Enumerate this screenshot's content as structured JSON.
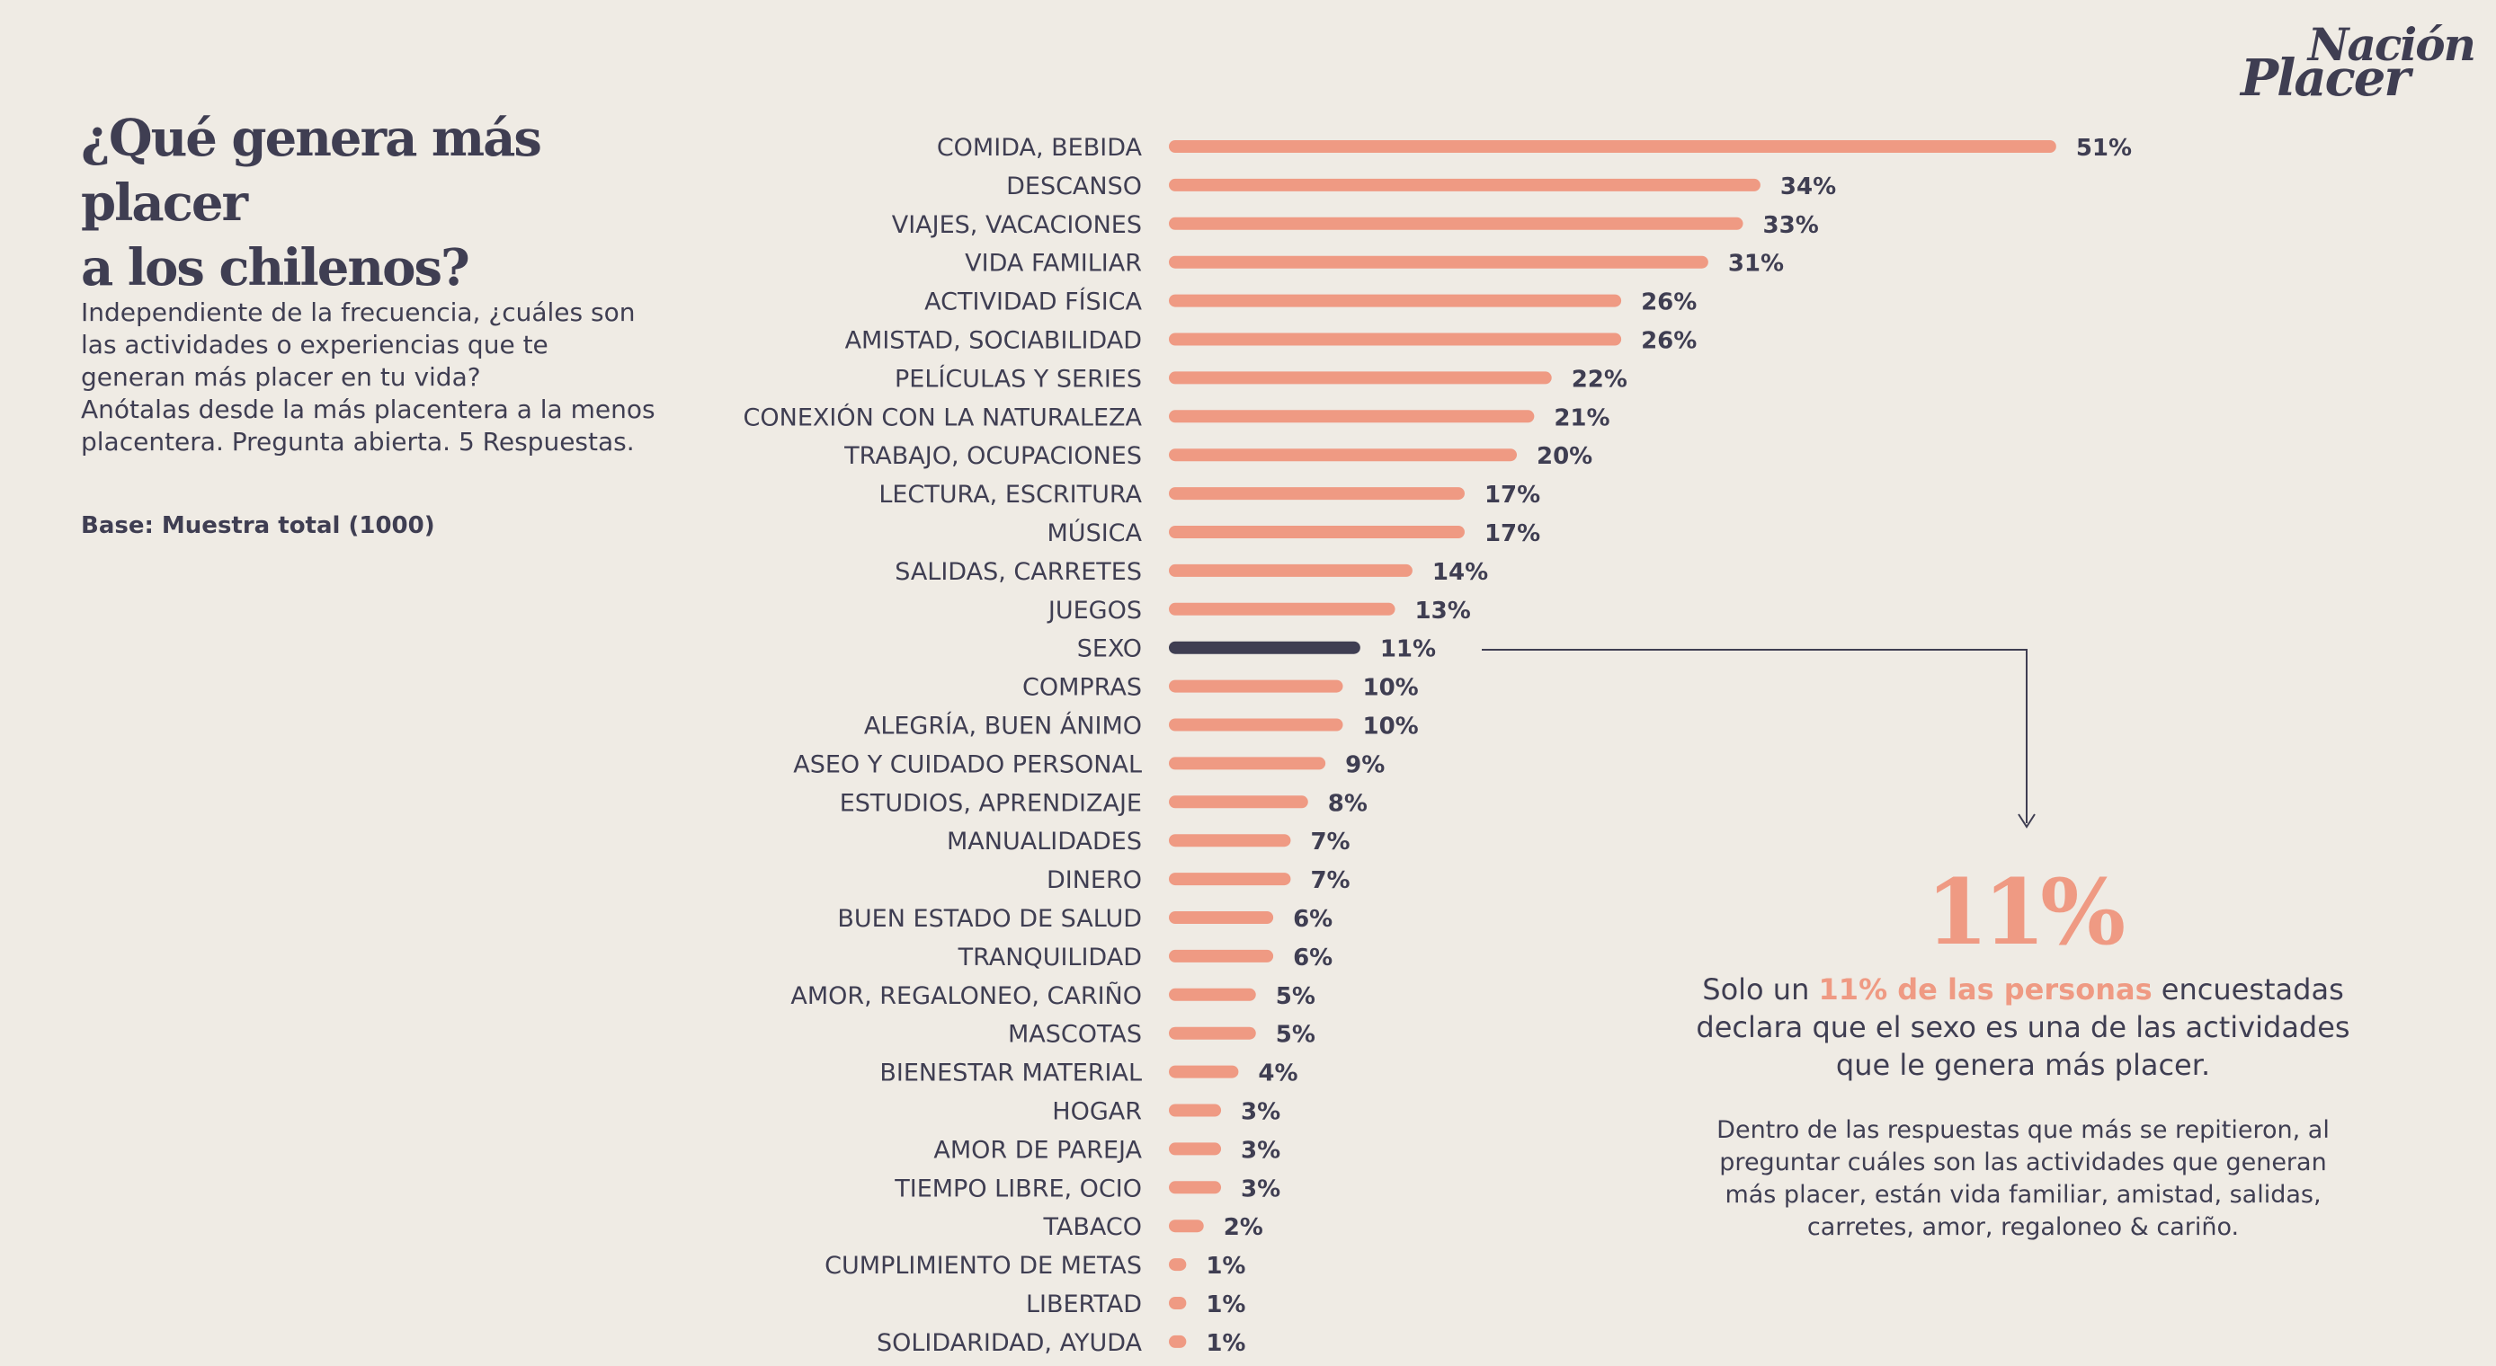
{
  "logo": {
    "line1": "Nación",
    "line2": "Placer"
  },
  "header": {
    "title_line1": "¿Qué genera más placer",
    "title_line2": "a los chilenos?"
  },
  "question": {
    "line1": "Independiente de la frecuencia, ¿cuáles son las actividades o experiencias que te generan más placer en tu vida?",
    "line2": "Anótalas desde la más placentera a la menos placentera. Pregunta abierta. 5 Respuestas."
  },
  "base": "Base: Muestra total (1000)",
  "callout": {
    "big_value": "11%",
    "text_before": "Solo un ",
    "text_highlight": "11% de las personas",
    "text_after": " encuestadas declara que el sexo es una de las actividades que le genera más placer.",
    "detail": "Dentro de las respuestas que más se repitieron, al preguntar cuáles son las actividades que generan más placer, están vida familiar, amistad, salidas, carretes, amor, regaloneo & cariño."
  },
  "colors": {
    "background": "#efebe4",
    "bar": "#ef9a83",
    "highlight_bar": "#3f3e52",
    "text": "#3f3e52",
    "accent": "#ef9a83"
  },
  "chart_data": {
    "type": "bar",
    "orientation": "horizontal",
    "highlight": "SEXO",
    "value_suffix": "%",
    "xlim": [
      0,
      51
    ],
    "grid": false,
    "categories": [
      "COMIDA, BEBIDA",
      "DESCANSO",
      "VIAJES, VACACIONES",
      "VIDA FAMILIAR",
      "ACTIVIDAD FÍSICA",
      "AMISTAD, SOCIABILIDAD",
      "PELÍCULAS Y SERIES",
      "CONEXIÓN CON LA NATURALEZA",
      "TRABAJO, OCUPACIONES",
      "LECTURA, ESCRITURA",
      "MÚSICA",
      "SALIDAS, CARRETES",
      "JUEGOS",
      "SEXO",
      "COMPRAS",
      "ALEGRÍA, BUEN ÁNIMO",
      "ASEO Y CUIDADO PERSONAL",
      "ESTUDIOS, APRENDIZAJE",
      "MANUALIDADES",
      "DINERO",
      "BUEN ESTADO DE SALUD",
      "TRANQUILIDAD",
      "AMOR, REGALONEO, CARIÑO",
      "MASCOTAS",
      "BIENESTAR MATERIAL",
      "HOGAR",
      "AMOR DE PAREJA",
      "TIEMPO LIBRE, OCIO",
      "TABACO",
      "CUMPLIMIENTO DE METAS",
      "LIBERTAD",
      "SOLIDARIDAD, AYUDA"
    ],
    "values": [
      51,
      34,
      33,
      31,
      26,
      26,
      22,
      21,
      20,
      17,
      17,
      14,
      13,
      11,
      10,
      10,
      9,
      8,
      7,
      7,
      6,
      6,
      5,
      5,
      4,
      3,
      3,
      3,
      2,
      1,
      1,
      1
    ]
  }
}
